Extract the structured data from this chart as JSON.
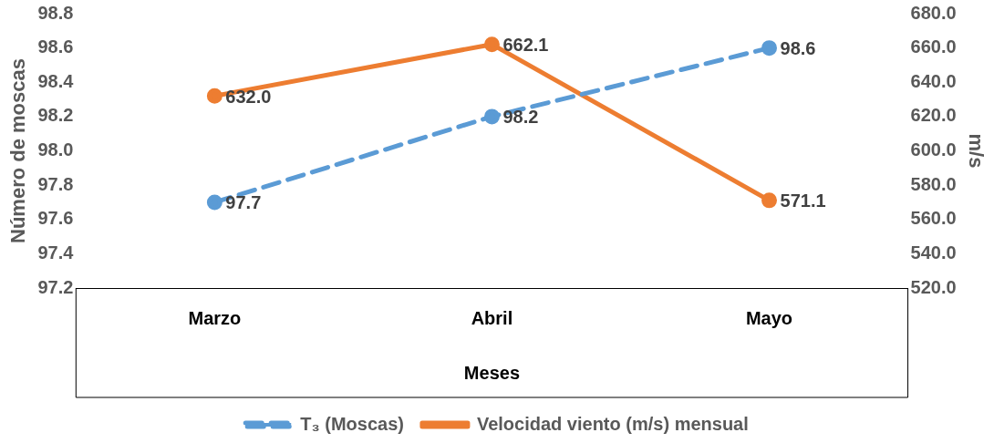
{
  "chart_data": {
    "type": "line",
    "xlabel": "Meses",
    "ylabel": "Número de moscas",
    "y2label": "m/s",
    "categories": [
      "Marzo",
      "Abril",
      "Mayo"
    ],
    "series": [
      {
        "name": "T₃ (Moscas)",
        "color": "#5b9bd5",
        "values": [
          97.7,
          98.2,
          98.6
        ],
        "value_labels": [
          "97.7",
          "98.2",
          "98.6"
        ],
        "line_style": "dashed",
        "axis": "y"
      },
      {
        "name": "Velocidad viento (m/s) mensual",
        "color": "#ed7d31",
        "values": [
          632.0,
          662.1,
          571.1
        ],
        "value_labels": [
          "632.0",
          "662.1",
          "571.1"
        ],
        "line_style": "solid",
        "axis": "y2"
      }
    ],
    "ylim": [
      97.2,
      98.8
    ],
    "yticks": [
      {
        "value": 97.2,
        "label": "97.2"
      },
      {
        "value": 97.4,
        "label": "97.4"
      },
      {
        "value": 97.6,
        "label": "97.6"
      },
      {
        "value": 97.8,
        "label": "97.8"
      },
      {
        "value": 98,
        "label": "98.0"
      },
      {
        "value": 98.2,
        "label": "98.2"
      },
      {
        "value": 98.4,
        "label": "98.4"
      },
      {
        "value": 98.6,
        "label": "98.6"
      },
      {
        "value": 98.8,
        "label": "98.8"
      }
    ],
    "y2lim": [
      520,
      680
    ],
    "y2ticks": [
      {
        "value": 520,
        "label": "520.0"
      },
      {
        "value": 540,
        "label": "540.0"
      },
      {
        "value": 560,
        "label": "560.0"
      },
      {
        "value": 580,
        "label": "580.0"
      },
      {
        "value": 600,
        "label": "600.0"
      },
      {
        "value": 620,
        "label": "620.0"
      },
      {
        "value": 640,
        "label": "640.0"
      },
      {
        "value": 660,
        "label": "660.0"
      },
      {
        "value": 680,
        "label": "680.0"
      }
    ],
    "grid": false,
    "legend": "bottom",
    "marker": "circle"
  }
}
